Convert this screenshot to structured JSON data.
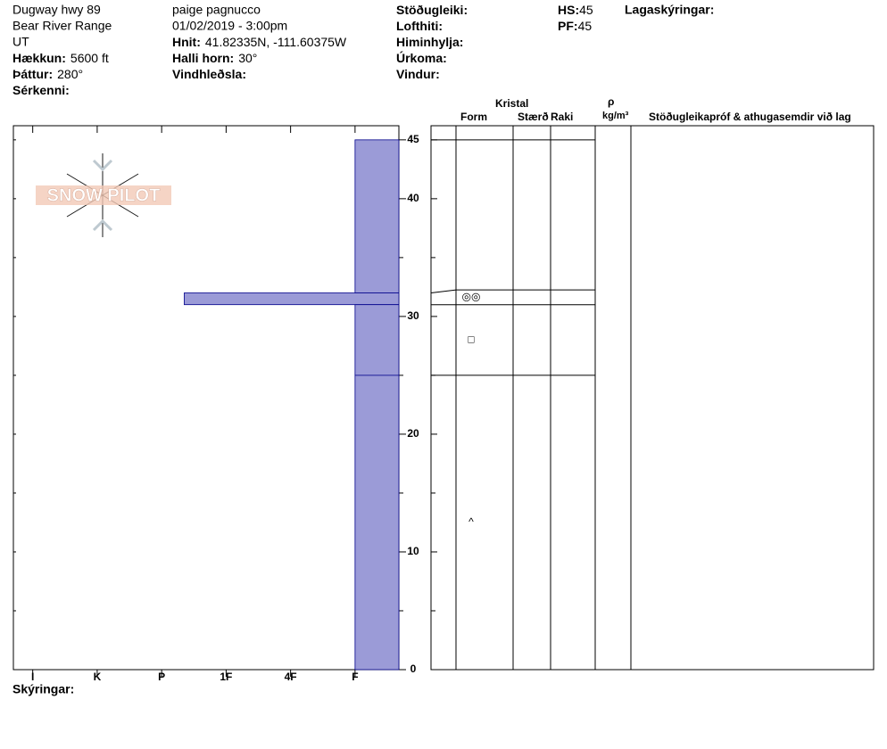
{
  "header": {
    "location": [
      "Dugway hwy 89",
      "Bear River Range",
      "UT"
    ],
    "fields_left": [
      {
        "label": "Hækkun:",
        "value": "5600 ft"
      },
      {
        "label": "Þáttur:",
        "value": "280°"
      },
      {
        "label": "Sérkenni:"
      }
    ],
    "observer": "paige pagnucco",
    "datetime": "01/02/2019 - 3:00pm",
    "fields_mid": [
      {
        "label": "Hnit:",
        "value": "41.82335N, -111.60375W"
      },
      {
        "label": "Halli horn:",
        "value": "30°"
      },
      {
        "label": "Vindhleðsla:"
      }
    ],
    "fields_right": [
      {
        "label": "Stöðugleiki:"
      },
      {
        "label": "Lofthiti:"
      },
      {
        "label": "Himinhylja:"
      },
      {
        "label": "Úrkoma:"
      },
      {
        "label": "Vindur:"
      }
    ],
    "hs": {
      "label": "HS:",
      "value": 45
    },
    "pf": {
      "label": "PF:",
      "value": 45
    },
    "layer_notes_label": "Lagaskýringar:"
  },
  "logo": "SNOW PILOT",
  "chart_data": {
    "type": "snow-profile",
    "ylim": [
      0,
      46.2
    ],
    "yticks": [
      0,
      10,
      20,
      30,
      40,
      45
    ],
    "minor_yticks": [
      5,
      15,
      25,
      35
    ],
    "xlim": [
      6.3,
      0.32
    ],
    "xticks": [
      {
        "value": 6,
        "label": "I"
      },
      {
        "value": 5,
        "label": "K"
      },
      {
        "value": 4,
        "label": "P"
      },
      {
        "value": 3,
        "label": "1F"
      },
      {
        "value": 2,
        "label": "4F"
      },
      {
        "value": 1,
        "label": "F"
      }
    ],
    "color": "#9b9bd7",
    "layers": [
      {
        "top": 45,
        "bottom": 32,
        "hardness": 1
      },
      {
        "top": 32,
        "bottom": 31,
        "hardness": 3.65,
        "grain_form": "◎◎"
      },
      {
        "top": 31,
        "bottom": 25,
        "hardness": 1,
        "grain_form": "□"
      },
      {
        "top": 25,
        "bottom": 0,
        "hardness": 1,
        "grain_form": "^"
      }
    ],
    "columns": {
      "crystal": "Kristal",
      "form": "Form",
      "size": "Stærð",
      "moisture": "Raki",
      "rho": "ρ",
      "density_unit": "kg/m³",
      "tests": "Stöðugleikapróf & athugasemdir við lag"
    },
    "legend_label": "Skýringar:"
  }
}
